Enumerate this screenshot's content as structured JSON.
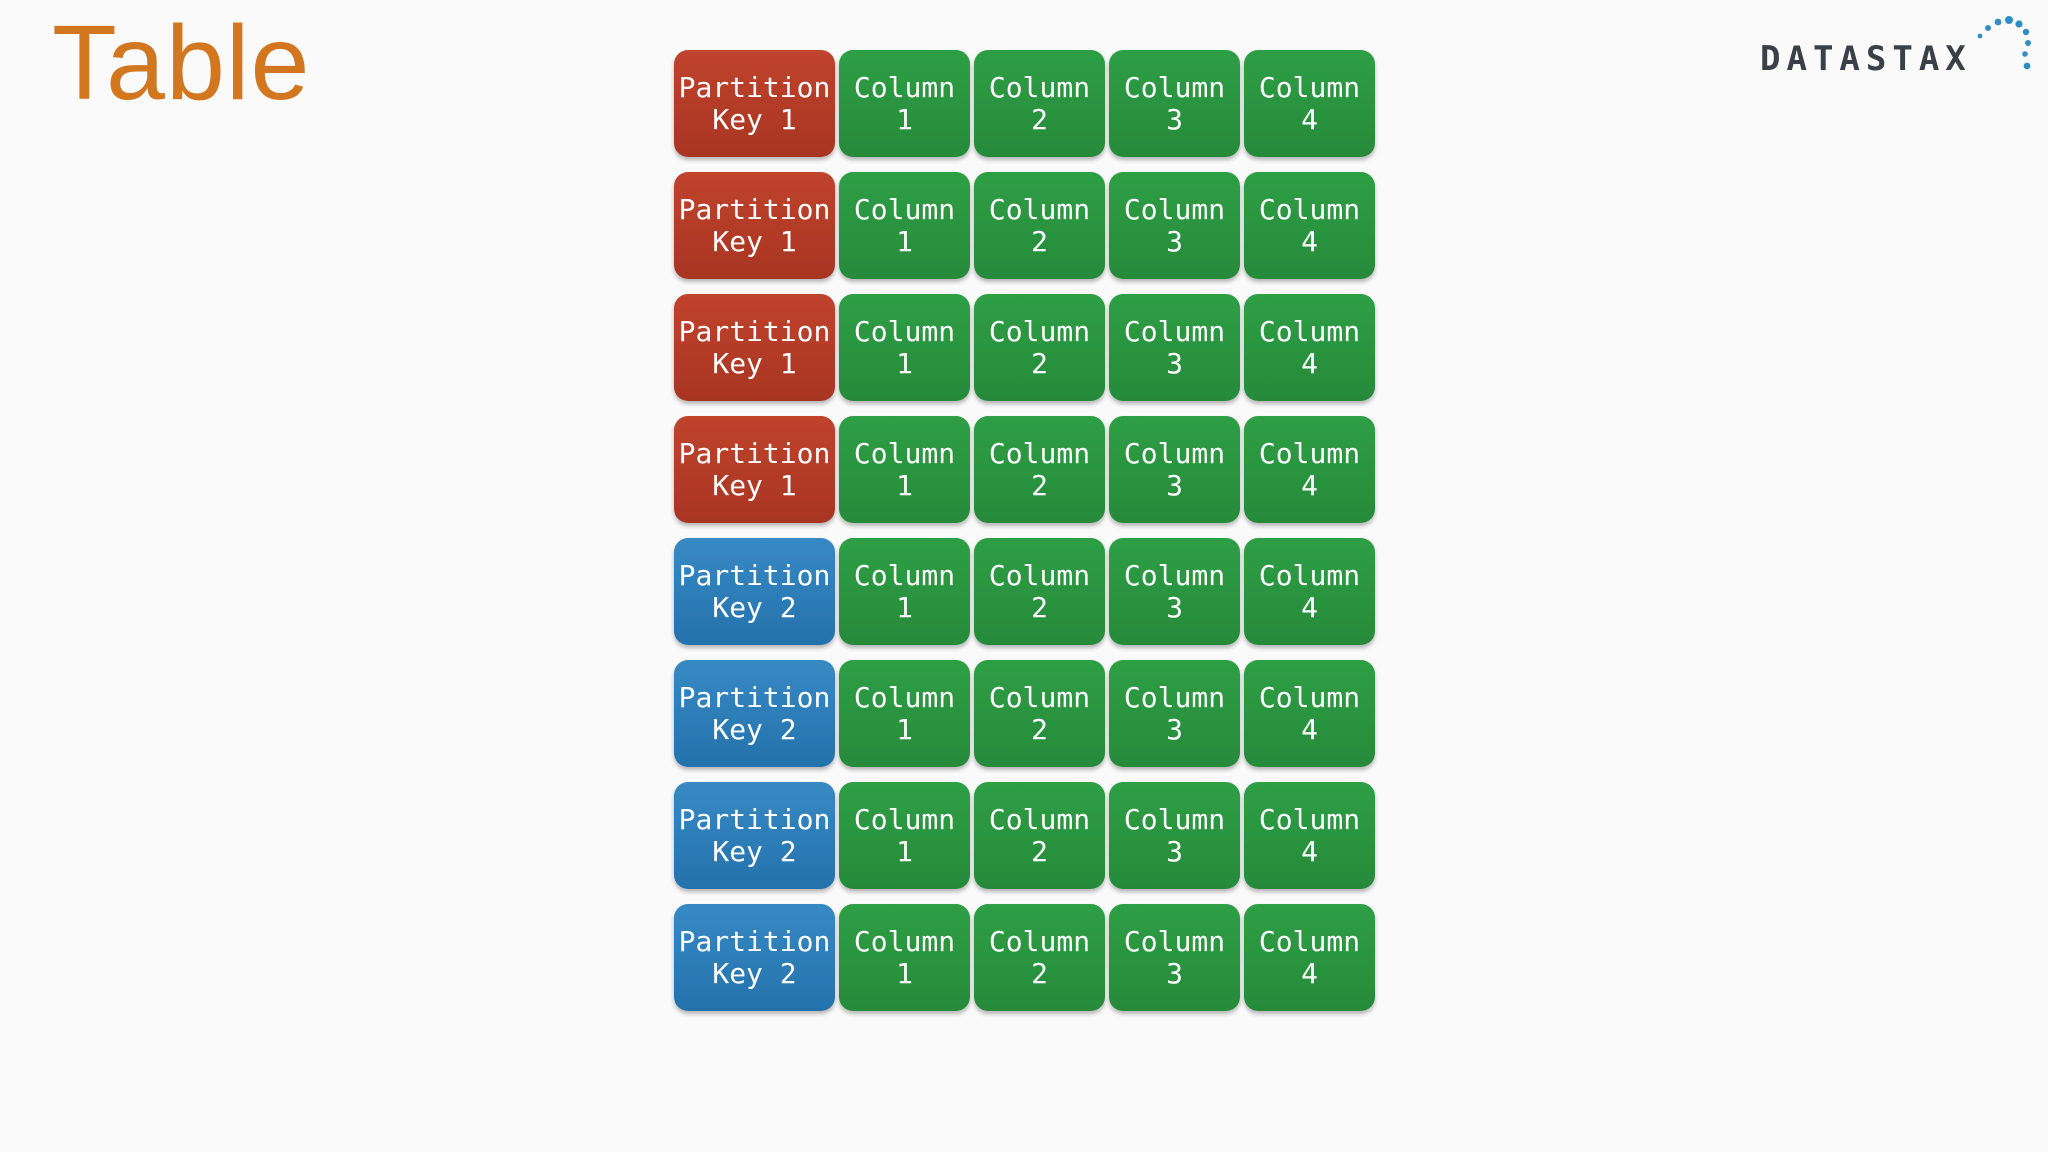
{
  "title": "Table",
  "logo": {
    "text": "DATASTAX",
    "colors": {
      "text": "#3a4048",
      "dots": "#2f8fc4"
    }
  },
  "colors": {
    "title": "#D2761F",
    "partition_key_1": "#b53b26",
    "partition_key_2": "#2b7db8",
    "column": "#2a963f"
  },
  "rows": [
    {
      "key": [
        "Partition",
        "Key 1"
      ],
      "group": "pk1",
      "columns": [
        [
          "Column",
          "1"
        ],
        [
          "Column",
          "2"
        ],
        [
          "Column",
          "3"
        ],
        [
          "Column",
          "4"
        ]
      ]
    },
    {
      "key": [
        "Partition",
        "Key 1"
      ],
      "group": "pk1",
      "columns": [
        [
          "Column",
          "1"
        ],
        [
          "Column",
          "2"
        ],
        [
          "Column",
          "3"
        ],
        [
          "Column",
          "4"
        ]
      ]
    },
    {
      "key": [
        "Partition",
        "Key 1"
      ],
      "group": "pk1",
      "columns": [
        [
          "Column",
          "1"
        ],
        [
          "Column",
          "2"
        ],
        [
          "Column",
          "3"
        ],
        [
          "Column",
          "4"
        ]
      ]
    },
    {
      "key": [
        "Partition",
        "Key 1"
      ],
      "group": "pk1",
      "columns": [
        [
          "Column",
          "1"
        ],
        [
          "Column",
          "2"
        ],
        [
          "Column",
          "3"
        ],
        [
          "Column",
          "4"
        ]
      ]
    },
    {
      "key": [
        "Partition",
        "Key 2"
      ],
      "group": "pk2",
      "columns": [
        [
          "Column",
          "1"
        ],
        [
          "Column",
          "2"
        ],
        [
          "Column",
          "3"
        ],
        [
          "Column",
          "4"
        ]
      ]
    },
    {
      "key": [
        "Partition",
        "Key 2"
      ],
      "group": "pk2",
      "columns": [
        [
          "Column",
          "1"
        ],
        [
          "Column",
          "2"
        ],
        [
          "Column",
          "3"
        ],
        [
          "Column",
          "4"
        ]
      ]
    },
    {
      "key": [
        "Partition",
        "Key 2"
      ],
      "group": "pk2",
      "columns": [
        [
          "Column",
          "1"
        ],
        [
          "Column",
          "2"
        ],
        [
          "Column",
          "3"
        ],
        [
          "Column",
          "4"
        ]
      ]
    },
    {
      "key": [
        "Partition",
        "Key 2"
      ],
      "group": "pk2",
      "columns": [
        [
          "Column",
          "1"
        ],
        [
          "Column",
          "2"
        ],
        [
          "Column",
          "3"
        ],
        [
          "Column",
          "4"
        ]
      ]
    }
  ]
}
